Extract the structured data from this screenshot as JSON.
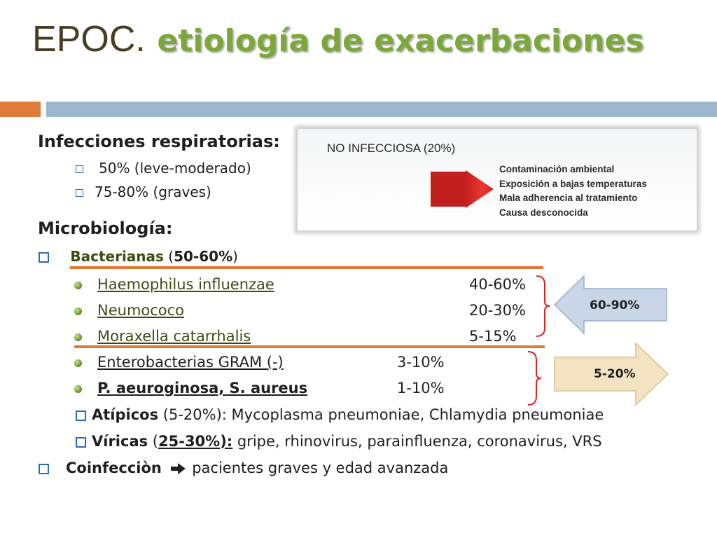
{
  "title": {
    "prefix": "EPOC.",
    "main": "etiología de exacerbaciones"
  },
  "colors": {
    "accent_orange": "#e07b3a",
    "band_blue": "#9db5cf",
    "title_green": "#7aa93a",
    "bullet_blue": "#2a6db8"
  },
  "infecciones": {
    "heading": "Infecciones respiratorias:",
    "items": [
      "50% (leve-moderado)",
      "75-80% (graves)"
    ]
  },
  "no_infecciosa": {
    "title": "NO INFECCIOSA (20%)",
    "causes": [
      "Contaminación ambiental",
      "Exposición a bajas temperaturas",
      "Mala adherencia al tratamiento",
      "Causa desconocida"
    ]
  },
  "microbiologia": {
    "heading": "Microbiología:",
    "bacterianas": {
      "label": "Bacterianas",
      "open": " (",
      "pct": "50-60%",
      "close": ")"
    },
    "organisms": [
      {
        "name": "Haemophilus influenzae",
        "pct": "40-60%"
      },
      {
        "name": "Neumococo",
        "pct": "20-30%"
      },
      {
        "name": "Moraxella catarrhalis",
        "pct": "5-15%"
      },
      {
        "name": "Enterobacterias GRAM (-)",
        "pct": "3-10%"
      },
      {
        "name": "P. aeuroginosa, S. aureus",
        "pct": "1-10%"
      }
    ],
    "atipicos": {
      "label": "Atípicos",
      "pct_part": " (5-20%):",
      "rest": " Mycoplasma pneumoniae, Chlamydia pneumoniae"
    },
    "viricas": {
      "label": "Víricas",
      "open": " (",
      "pct": "25-30%):",
      "rest": " gripe, rhinovirus, parainfluenza, coronavirus, VRS"
    },
    "coinfeccion": {
      "label": "Coinfecciòn",
      "rest": " pacientes graves y edad avanzada"
    }
  },
  "callouts": [
    {
      "label": "60-90%",
      "fill": "#c9d6e8"
    },
    {
      "label": "5-20%",
      "fill": "#f4e3c2"
    }
  ]
}
